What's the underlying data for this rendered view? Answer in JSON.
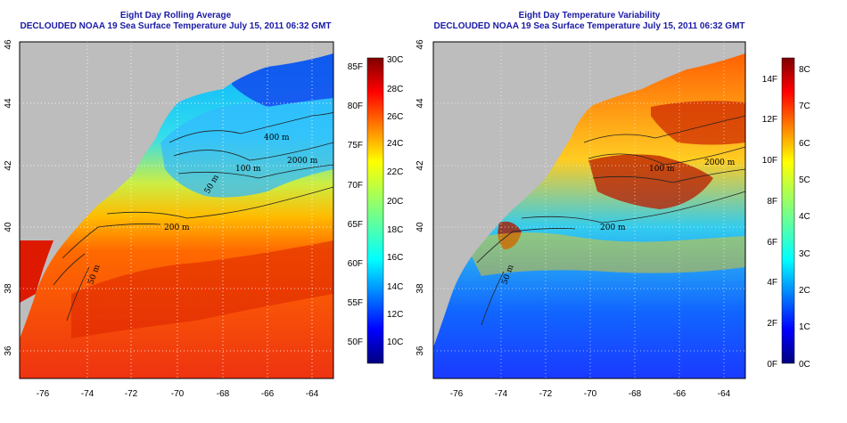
{
  "panels": [
    {
      "title": "Eight Day Rolling Average",
      "subtitle": "DECLOUDED NOAA 19 Sea Surface Temperature July 15, 2011 06:32 GMT",
      "x_ticks": [
        "-76",
        "-74",
        "-72",
        "-70",
        "-68",
        "-66",
        "-64"
      ],
      "y_ticks": [
        "36",
        "38",
        "40",
        "42",
        "44",
        "46"
      ],
      "contour_labels": [
        "400 m",
        "2000 m",
        "100 m",
        "50 m",
        "200 m",
        "50 m"
      ],
      "colorbar_f": [
        "85F",
        "80F",
        "75F",
        "70F",
        "65F",
        "60F",
        "55F",
        "50F"
      ],
      "colorbar_c": [
        "30C",
        "28C",
        "26C",
        "24C",
        "22C",
        "20C",
        "18C",
        "16C",
        "14C",
        "12C",
        "10C"
      ]
    },
    {
      "title": "Eight Day Temperature Variability",
      "subtitle": "DECLOUDED NOAA 19 Sea Surface Temperature July 15, 2011 06:32 GMT",
      "x_ticks": [
        "-76",
        "-74",
        "-72",
        "-70",
        "-68",
        "-66",
        "-64"
      ],
      "y_ticks": [
        "36",
        "38",
        "40",
        "42",
        "44",
        "46"
      ],
      "contour_labels": [
        "100 m",
        "2000 m",
        "200 m",
        "50 m"
      ],
      "colorbar_f": [
        "14F",
        "12F",
        "10F",
        "8F",
        "6F",
        "4F",
        "2F",
        "0F"
      ],
      "colorbar_c": [
        "8C",
        "7C",
        "6C",
        "5C",
        "4C",
        "3C",
        "2C",
        "1C",
        "0C"
      ]
    }
  ],
  "colors": {
    "land": "#bdbdbd",
    "title": "#1a1aa6",
    "jet_scale": [
      "#00007f",
      "#0000ff",
      "#007fff",
      "#00ffff",
      "#7fff7f",
      "#ffff00",
      "#ff7f00",
      "#ff0000",
      "#7f0000"
    ]
  }
}
